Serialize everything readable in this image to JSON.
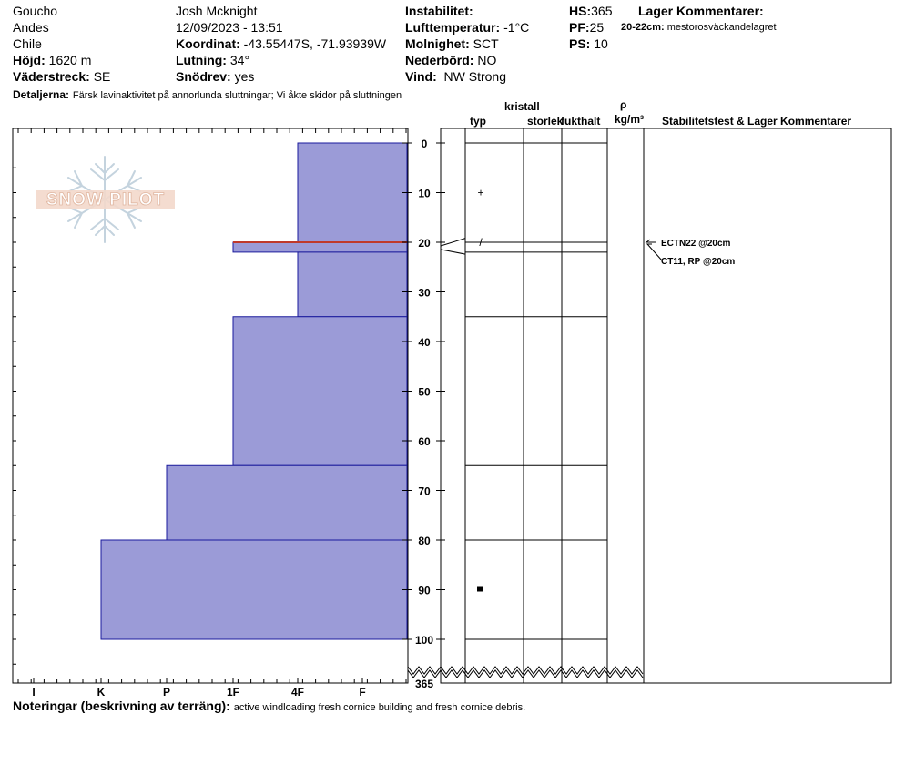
{
  "header": {
    "location": {
      "name": "Goucho",
      "range": "Andes",
      "country": "Chile"
    },
    "elevation": {
      "label": "Höjd:",
      "value": "1620 m"
    },
    "aspect": {
      "label": "Väderstreck:",
      "value": "SE"
    },
    "observer": "Josh Mcknight",
    "datetime": "12/09/2023 - 13:51",
    "coordinate": {
      "label": "Koordinat:",
      "value": "-43.55447S, -71.93939W"
    },
    "slope": {
      "label": "Lutning:",
      "value": "34°"
    },
    "blowing_snow": {
      "label": "Snödrev:",
      "value": "yes"
    },
    "instability": {
      "label": "Instabilitet:",
      "value": ""
    },
    "air_temp": {
      "label": "Lufttemperatur:",
      "value": "-1°C"
    },
    "sky": {
      "label": "Molnighet:",
      "value": "SCT"
    },
    "precip": {
      "label": "Nederbörd:",
      "value": "NO"
    },
    "wind": {
      "label": "Vind:",
      "value": "NW Strong"
    },
    "hs": {
      "label": "HS:",
      "value": "365"
    },
    "pf": {
      "label": "PF:",
      "value": "25"
    },
    "ps": {
      "label": "PS:",
      "value": "10"
    },
    "layer_comments": {
      "title": "Lager Kommentarer:",
      "depth": "20-22cm:",
      "text": "mestorosväckandelagret"
    },
    "details": {
      "label": "Detaljerna:",
      "text": "Färsk lavinaktivitet på annorlunda sluttningar; Vi åkte skidor på sluttningen"
    }
  },
  "columns": {
    "crystal": "kristall",
    "type": "typ",
    "size": "storlek",
    "moisture": "fukthalt",
    "rho": "ρ",
    "density_unit": "kg/m³",
    "stability": "Stabilitetstest & Lager Kommentarer"
  },
  "logo": "SNOW PILOT",
  "notes": {
    "label": "Noteringar (beskrivning av terräng):",
    "text": "active windloading fresh cornice building and fresh cornice debris."
  },
  "tests": [
    "ECTN22 @20cm",
    "CT11, RP @20cm"
  ],
  "colors": {
    "layer_fill": "#9b9bd7",
    "layer_stroke": "#1a1a9c",
    "weak_layer": "#c0392b"
  },
  "chart_data": {
    "type": "bar",
    "orientation": "horizontal",
    "x_categories": [
      "I",
      "K",
      "P",
      "1F",
      "4F",
      "F"
    ],
    "y_ticks": [
      0,
      10,
      20,
      30,
      40,
      50,
      60,
      70,
      80,
      90,
      100
    ],
    "y_bottom_label": "365",
    "ylim": [
      0,
      110
    ],
    "hardness_scale": {
      "F": 1,
      "4F": 2,
      "1F": 3,
      "P": 4,
      "K": 5,
      "I": 6
    },
    "layers": [
      {
        "top": 0,
        "bottom": 20,
        "hardness": "4F"
      },
      {
        "top": 20,
        "bottom": 22,
        "hardness": "1F"
      },
      {
        "top": 22,
        "bottom": 35,
        "hardness": "4F"
      },
      {
        "top": 35,
        "bottom": 65,
        "hardness": "1F"
      },
      {
        "top": 65,
        "bottom": 80,
        "hardness": "P"
      },
      {
        "top": 80,
        "bottom": 100,
        "hardness": "K"
      }
    ],
    "weak_layer_depth": 20,
    "grain_symbols": [
      {
        "depth": 10,
        "symbol": "+"
      },
      {
        "depth": 20,
        "symbol": "/"
      },
      {
        "depth": 90,
        "symbol": "■"
      }
    ]
  }
}
